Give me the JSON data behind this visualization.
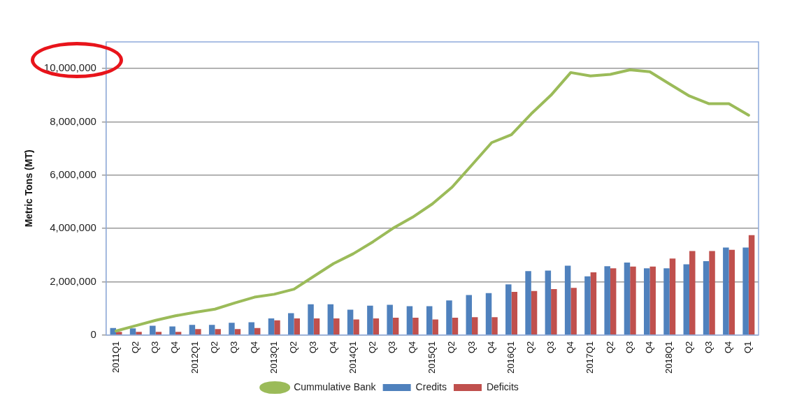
{
  "chart_data": {
    "type": "bar",
    "ylabel": "Metric Tons (MT)",
    "categories": [
      "2011Q1",
      "Q2",
      "Q3",
      "Q4",
      "2012Q1",
      "Q2",
      "Q3",
      "Q4",
      "2013Q1",
      "Q2",
      "Q3",
      "Q4",
      "2014Q1",
      "Q2",
      "Q3",
      "Q4",
      "2015Q1",
      "Q2",
      "Q3",
      "Q4",
      "2016Q1",
      "Q2",
      "Q3",
      "Q4",
      "2017Q1",
      "Q2",
      "Q3",
      "Q4",
      "2018Q1",
      "Q2",
      "Q3",
      "Q4",
      "Q1"
    ],
    "series": [
      {
        "name": "Credits",
        "color": "#4f81bd",
        "values": [
          260000,
          250000,
          350000,
          320000,
          380000,
          380000,
          460000,
          480000,
          620000,
          820000,
          1150000,
          1150000,
          950000,
          1100000,
          1130000,
          1080000,
          1080000,
          1300000,
          1500000,
          1570000,
          1900000,
          2400000,
          2420000,
          2600000,
          2200000,
          2580000,
          2720000,
          2500000,
          2500000,
          2650000,
          2770000,
          3280000,
          3280000
        ]
      },
      {
        "name": "Deficits",
        "color": "#c0504d",
        "values": [
          120000,
          120000,
          120000,
          120000,
          220000,
          220000,
          220000,
          260000,
          550000,
          620000,
          620000,
          620000,
          580000,
          620000,
          650000,
          650000,
          580000,
          650000,
          670000,
          670000,
          1620000,
          1650000,
          1720000,
          1770000,
          2350000,
          2500000,
          2570000,
          2570000,
          2870000,
          3150000,
          3150000,
          3200000,
          3750000
        ]
      },
      {
        "name": "Cummulative Bank",
        "type": "line",
        "color": "#9bbb59",
        "values": [
          150000,
          350000,
          550000,
          720000,
          850000,
          970000,
          1200000,
          1420000,
          1530000,
          1720000,
          2200000,
          2680000,
          3050000,
          3500000,
          4000000,
          4420000,
          4920000,
          5550000,
          6380000,
          7220000,
          7520000,
          8300000,
          9000000,
          9850000,
          9720000,
          9780000,
          9950000,
          9880000,
          9420000,
          8970000,
          8680000,
          8680000,
          8250000
        ]
      }
    ],
    "ylim": [
      0,
      11000000
    ],
    "yticks": [
      0,
      {
        "value": 2000000,
        "label": "2,000,000"
      },
      {
        "value": 4000000,
        "label": "4,000,000"
      },
      {
        "value": 6000000,
        "label": "6,000,000"
      },
      {
        "value": 8000000,
        "label": "8,000,000"
      },
      {
        "value": 10000000,
        "label": "10,000,000"
      }
    ],
    "grid": "y",
    "legend": "bottom",
    "marker": "none",
    "line_style": "solid"
  }
}
